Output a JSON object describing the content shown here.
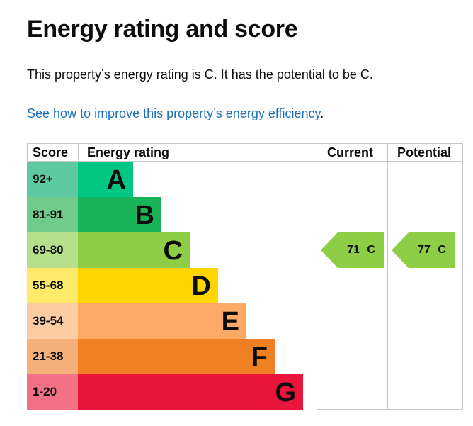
{
  "heading": "Energy rating and score",
  "summary": "This property’s energy rating is C. It has the potential to be C.",
  "improve_link": "See how to improve this property’s energy efficiency",
  "improve_suffix": ".",
  "table": {
    "headers": {
      "score": "Score",
      "rating": "Energy rating",
      "current": "Current",
      "potential": "Potential"
    },
    "bands": [
      {
        "letter": "A",
        "range": "92+",
        "bar_color": "#00c781",
        "score_bg": "#5ec9a0"
      },
      {
        "letter": "B",
        "range": "81-91",
        "bar_color": "#19b459",
        "score_bg": "#6fcb8b"
      },
      {
        "letter": "C",
        "range": "69-80",
        "bar_color": "#8dce46",
        "score_bg": "#b6df8c"
      },
      {
        "letter": "D",
        "range": "55-68",
        "bar_color": "#ffd500",
        "score_bg": "#ffe96a"
      },
      {
        "letter": "E",
        "range": "39-54",
        "bar_color": "#fcaa65",
        "score_bg": "#fdcca3"
      },
      {
        "letter": "F",
        "range": "21-38",
        "bar_color": "#ef8023",
        "score_bg": "#f5b07a"
      },
      {
        "letter": "G",
        "range": "1-20",
        "bar_color": "#e9153b",
        "score_bg": "#f27186"
      }
    ],
    "current": {
      "score": "71",
      "letter": "C",
      "label": "71 C",
      "color": "#8dce46"
    },
    "potential": {
      "score": "77",
      "letter": "C",
      "label": "77 C",
      "color": "#8dce46"
    }
  }
}
